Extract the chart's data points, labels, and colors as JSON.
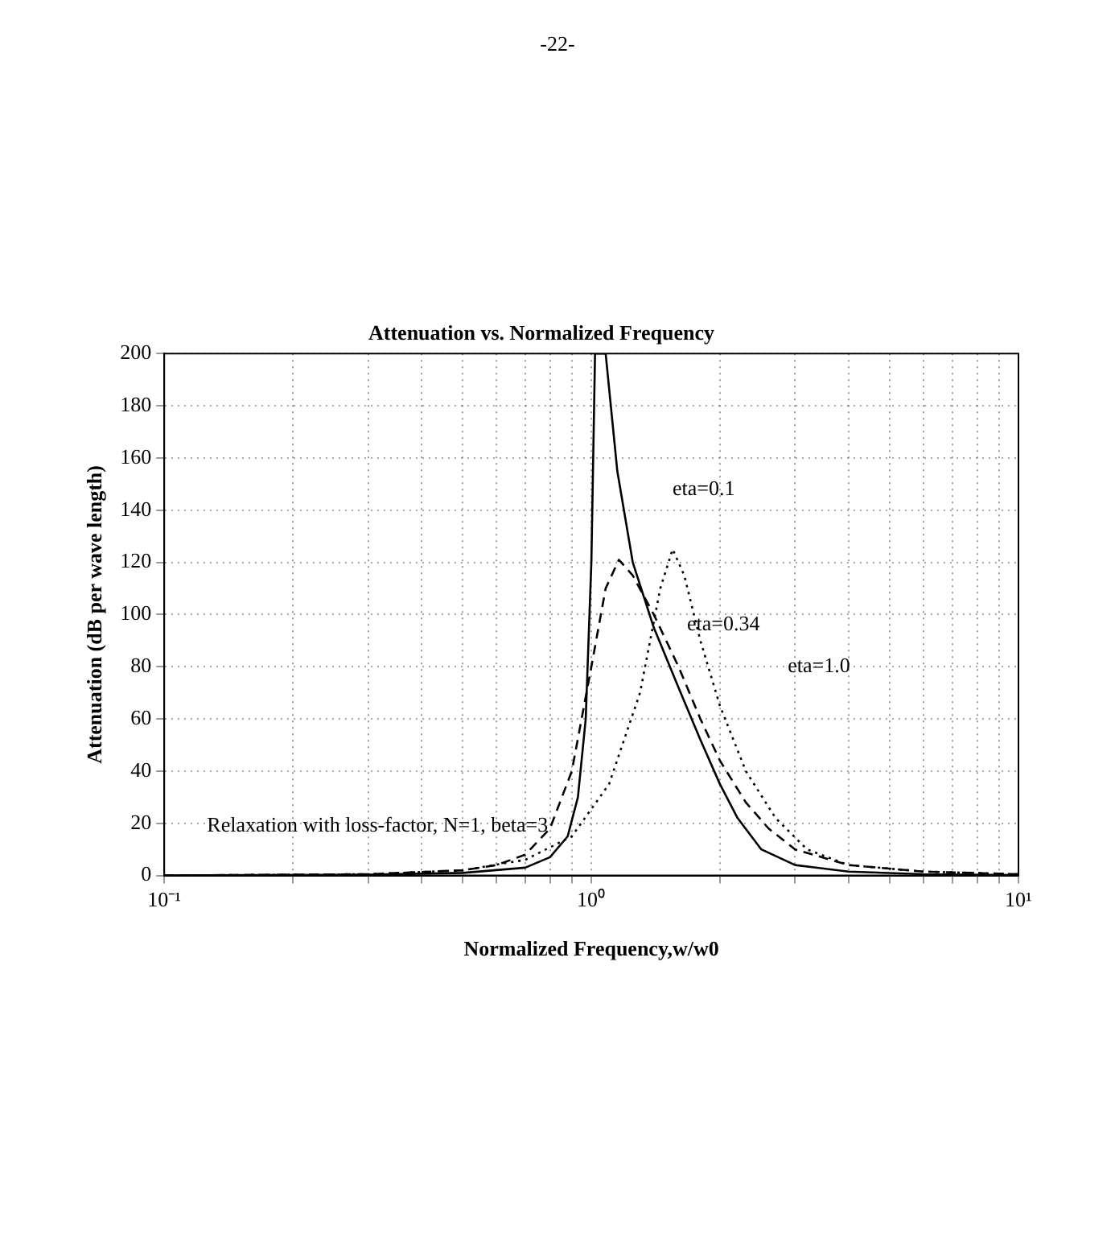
{
  "chart_data": {
    "type": "line",
    "title": "Attenuation vs. Normalized Frequency",
    "xlabel": "Normalized Frequency,w/w0",
    "ylabel": "Attenuation (dB per wave length)",
    "log": "x",
    "grid": true,
    "legend": false,
    "marker": "none",
    "xlim": [
      0.1,
      10
    ],
    "ylim": [
      0,
      200
    ],
    "xticks": [
      {
        "value": 0.1,
        "label": "10⁻¹"
      },
      {
        "value": 0.2,
        "label": null
      },
      {
        "value": 0.3,
        "label": null
      },
      {
        "value": 0.4,
        "label": null
      },
      {
        "value": 0.5,
        "label": null
      },
      {
        "value": 0.6,
        "label": null
      },
      {
        "value": 0.7,
        "label": null
      },
      {
        "value": 0.8,
        "label": null
      },
      {
        "value": 0.9,
        "label": null
      },
      {
        "value": 1,
        "label": "10⁰"
      },
      {
        "value": 2,
        "label": null
      },
      {
        "value": 3,
        "label": null
      },
      {
        "value": 4,
        "label": null
      },
      {
        "value": 5,
        "label": null
      },
      {
        "value": 6,
        "label": null
      },
      {
        "value": 7,
        "label": null
      },
      {
        "value": 8,
        "label": null
      },
      {
        "value": 9,
        "label": null
      },
      {
        "value": 10,
        "label": "10¹"
      }
    ],
    "yticks": [
      0,
      20,
      40,
      60,
      80,
      100,
      120,
      140,
      160,
      180,
      200
    ],
    "series": [
      {
        "color": "#000000",
        "line_style": "solid",
        "x": [
          0.1,
          0.3,
          0.5,
          0.7,
          0.8,
          0.88,
          0.93,
          0.97,
          1.0,
          1.02,
          1.08,
          1.15,
          1.25,
          1.4,
          1.6,
          1.8,
          2.0,
          2.2,
          2.5,
          3.0,
          4,
          6,
          10
        ],
        "values": [
          0,
          0.3,
          1,
          3,
          7,
          15,
          30,
          60,
          120,
          200,
          200,
          155,
          120,
          95,
          72,
          52,
          35,
          22,
          10,
          4,
          1.5,
          0.5,
          0.2
        ]
      },
      {
        "color": "#000000",
        "line_style": "dashed",
        "x": [
          0.1,
          0.3,
          0.5,
          0.6,
          0.7,
          0.8,
          0.9,
          1.0,
          1.08,
          1.16,
          1.25,
          1.4,
          1.6,
          1.8,
          2.0,
          2.3,
          2.6,
          3,
          4,
          6,
          10
        ],
        "values": [
          0,
          0.5,
          2,
          4,
          8,
          18,
          40,
          80,
          110,
          121,
          115,
          100,
          80,
          60,
          44,
          28,
          18,
          10,
          4,
          1.5,
          0.5
        ]
      },
      {
        "color": "#000000",
        "line_style": "dotted",
        "x": [
          0.1,
          0.3,
          0.5,
          0.7,
          0.9,
          1.1,
          1.3,
          1.45,
          1.55,
          1.65,
          1.8,
          2.0,
          2.3,
          2.7,
          3.2,
          4,
          6,
          10
        ],
        "values": [
          0,
          0.5,
          2,
          6,
          15,
          35,
          70,
          110,
          125,
          115,
          90,
          65,
          40,
          22,
          10,
          4,
          1.5,
          0.5
        ]
      }
    ],
    "annotations": [
      "-22-",
      "eta=0.1",
      "eta=0.34",
      "eta=1.0",
      "Relaxation with loss-factor, N=1, beta=3"
    ]
  }
}
